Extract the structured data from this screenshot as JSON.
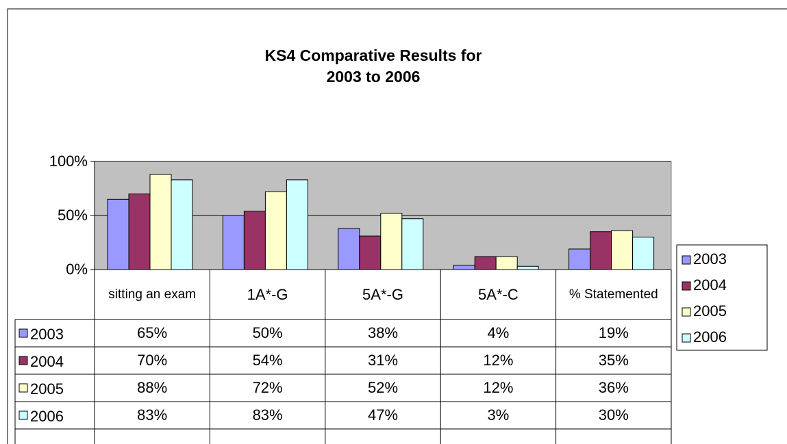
{
  "chart_data": {
    "type": "bar",
    "title": "KS4 Comparative Results for 2003 to 2006",
    "categories": [
      "sitting an exam",
      "1A*-G",
      "5A*-G",
      "5A*-C",
      "% Statemented"
    ],
    "series": [
      {
        "name": "2003",
        "color": "#9999ff",
        "values": [
          65,
          50,
          38,
          4,
          19
        ],
        "value_labels": [
          "65%",
          "50%",
          "38%",
          "4%",
          "19%"
        ]
      },
      {
        "name": "2004",
        "color": "#993366",
        "values": [
          70,
          54,
          31,
          12,
          35
        ],
        "value_labels": [
          "70%",
          "54%",
          "31%",
          "12%",
          "35%"
        ]
      },
      {
        "name": "2005",
        "color": "#ffffcc",
        "values": [
          88,
          72,
          52,
          12,
          36
        ],
        "value_labels": [
          "88%",
          "72%",
          "52%",
          "12%",
          "36%"
        ]
      },
      {
        "name": "2006",
        "color": "#ccffff",
        "values": [
          83,
          83,
          47,
          3,
          30
        ],
        "value_labels": [
          "83%",
          "83%",
          "47%",
          "3%",
          "30%"
        ]
      }
    ],
    "ylim": [
      0,
      100
    ],
    "yticks": [
      {
        "value": 0,
        "label": "0%"
      },
      {
        "value": 50,
        "label": "50%"
      },
      {
        "value": 100,
        "label": "100%"
      }
    ],
    "grid": true,
    "legend": "right",
    "plot_background": "#c0c0c0"
  }
}
